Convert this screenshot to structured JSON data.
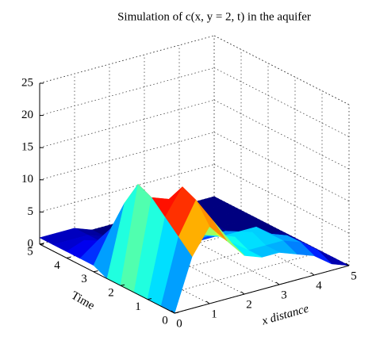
{
  "chart_data": {
    "type": "surface",
    "title": "Simulation of c(x, y = 2, t) in the aquifer",
    "xlabel": "x distance",
    "ylabel": "Time",
    "x": [
      0,
      0.5,
      1,
      1.5,
      2,
      2.5,
      3,
      3.5,
      4,
      4.5,
      5
    ],
    "y": [
      0,
      0.5,
      1,
      1.5,
      2,
      2.5,
      3,
      3.5,
      4,
      4.5,
      5
    ],
    "z": [
      [
        0,
        8,
        12,
        9,
        6,
        5,
        5,
        4,
        3,
        1,
        0
      ],
      [
        0,
        10,
        15,
        11,
        7,
        5,
        5,
        5,
        4,
        2,
        0
      ],
      [
        0,
        12,
        16,
        12,
        7,
        6,
        6,
        5,
        4,
        2,
        0
      ],
      [
        0,
        14,
        13,
        9,
        6,
        5,
        5,
        5,
        3,
        1,
        0
      ],
      [
        0,
        15,
        10,
        6,
        4,
        4,
        4,
        3,
        2,
        1,
        0
      ],
      [
        0,
        11,
        6,
        4,
        3,
        2,
        2,
        2,
        1,
        0,
        0
      ],
      [
        1,
        6,
        4,
        2,
        1,
        1,
        1,
        1,
        0,
        0,
        0
      ],
      [
        1,
        3,
        2,
        1,
        1,
        0,
        0,
        0,
        0,
        0,
        0
      ],
      [
        1,
        2,
        1,
        1,
        0,
        0,
        0,
        0,
        0,
        0,
        0
      ],
      [
        1,
        1,
        1,
        0,
        0,
        0,
        0,
        0,
        0,
        0,
        0
      ],
      [
        1,
        1,
        1,
        0,
        0,
        0,
        0,
        0,
        0,
        0,
        0
      ]
    ],
    "xlim": [
      0,
      5
    ],
    "ylim": [
      0,
      5
    ],
    "zlim": [
      0,
      25
    ],
    "xticks": [
      0,
      1,
      2,
      3,
      4,
      5
    ],
    "yticks": [
      0,
      1,
      2,
      3,
      4,
      5
    ],
    "zticks": [
      0,
      5,
      10,
      15,
      20,
      25
    ],
    "grid": true,
    "colormap": "jet"
  }
}
